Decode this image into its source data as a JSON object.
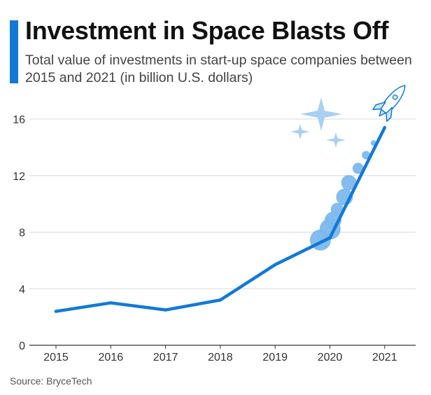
{
  "header": {
    "title": "Investment in Space Blasts Off",
    "subtitle": "Total value of investments in start-up space companies between 2015 and 2021 (in billion U.S. dollars)"
  },
  "footer": {
    "source": "Source: BryceTech"
  },
  "colors": {
    "accent": "#1279d6",
    "line": "#1279d6",
    "smoke": "#7cb8ec",
    "sparkle": "#a9cff2",
    "grid": "#d8d8d8"
  },
  "chart_data": {
    "type": "line",
    "title": "Investment in Space Blasts Off",
    "xlabel": "",
    "ylabel": "",
    "categories": [
      "2015",
      "2016",
      "2017",
      "2018",
      "2019",
      "2020",
      "2021"
    ],
    "series": [
      {
        "name": "Total value of investments",
        "values": [
          2.4,
          3.0,
          2.5,
          3.2,
          5.7,
          7.6,
          15.4
        ]
      }
    ],
    "ylim": [
      0,
      16
    ],
    "yticks": [
      0,
      4,
      8,
      12,
      16
    ],
    "grid": true,
    "legend": "none"
  }
}
